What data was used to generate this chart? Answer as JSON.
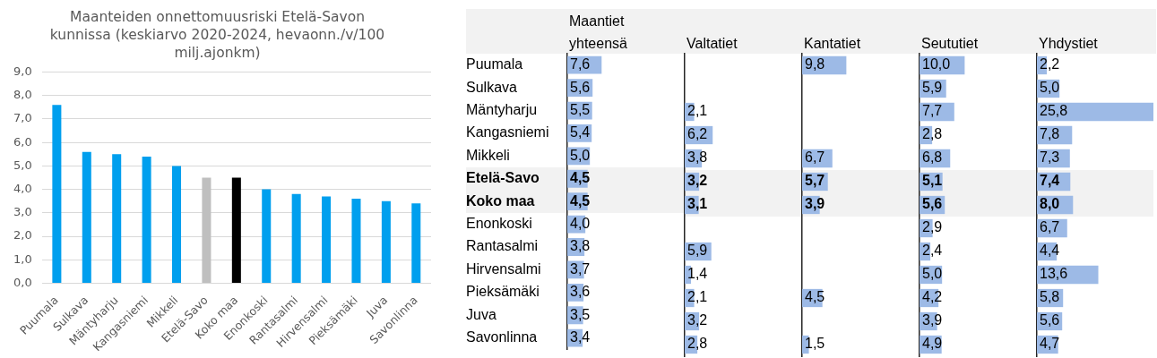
{
  "chart_data": [
    {
      "type": "bar",
      "title": "Maanteiden onnettomuusriski Etelä-Savon kunnissa (keskiarvo 2020-2024, hevaonn./v/100 milj.ajonkm)",
      "categories": [
        "Puumala",
        "Sulkava",
        "Mäntyharju",
        "Kangasniemi",
        "Mikkeli",
        "Etelä-Savo",
        "Koko maa",
        "Enonkoski",
        "Rantasalmi",
        "Hirvensalmi",
        "Pieksämäki",
        "Juva",
        "Savonlinna"
      ],
      "values": [
        7.6,
        5.6,
        5.5,
        5.4,
        5.0,
        4.5,
        4.5,
        4.0,
        3.8,
        3.7,
        3.6,
        3.5,
        3.4
      ],
      "colors": [
        "#009fee",
        "#009fee",
        "#009fee",
        "#009fee",
        "#009fee",
        "#bfbfbf",
        "#000000",
        "#009fee",
        "#009fee",
        "#009fee",
        "#009fee",
        "#009fee",
        "#009fee"
      ],
      "ylim": [
        0,
        9
      ],
      "yticks": [
        {
          "value": 0,
          "label": "0,0"
        },
        {
          "value": 1,
          "label": "1,0"
        },
        {
          "value": 2,
          "label": "2,0"
        },
        {
          "value": 3,
          "label": "3,0"
        },
        {
          "value": 4,
          "label": "4,0"
        },
        {
          "value": 5,
          "label": "5,0"
        },
        {
          "value": 6,
          "label": "6,0"
        },
        {
          "value": 7,
          "label": "7,0"
        },
        {
          "value": 8,
          "label": "8,0"
        },
        {
          "value": 9,
          "label": "9,0"
        }
      ],
      "grid": "y"
    },
    {
      "type": "bar",
      "orientation": "horizontal",
      "title": "Maantiet yhteensä",
      "categories": [
        "Puumala",
        "Sulkava",
        "Mäntyharju",
        "Kangasniemi",
        "Mikkeli",
        "Etelä-Savo",
        "Koko maa",
        "Enonkoski",
        "Rantasalmi",
        "Hirvensalmi",
        "Pieksämäki",
        "Juva",
        "Savonlinna"
      ],
      "values": [
        7.6,
        5.6,
        5.5,
        5.4,
        5.0,
        4.5,
        4.5,
        4.0,
        3.8,
        3.7,
        3.6,
        3.5,
        3.4
      ],
      "value_labels": [
        "7,6",
        "5,6",
        "5,5",
        "5,4",
        "5,0",
        "4,5",
        "4,5",
        "4,0",
        "3,8",
        "3,7",
        "3,6",
        "3,5",
        "3,4"
      ],
      "color": "#9dbae6",
      "tick_labels": "y",
      "bands": [
        {
          "axis": "y",
          "from": "Etelä-Savo",
          "to": "Koko maa",
          "color": "#f2f2f2"
        }
      ]
    },
    {
      "type": "bar",
      "orientation": "horizontal",
      "title": "Valtatiet",
      "categories": [
        "Puumala",
        "Sulkava",
        "Mäntyharju",
        "Kangasniemi",
        "Mikkeli",
        "Etelä-Savo",
        "Koko maa",
        "Enonkoski",
        "Rantasalmi",
        "Hirvensalmi",
        "Pieksämäki",
        "Juva",
        "Savonlinna"
      ],
      "values": [
        null,
        null,
        2.1,
        6.2,
        3.8,
        3.2,
        3.1,
        null,
        5.9,
        1.4,
        2.1,
        3.2,
        2.8
      ],
      "value_labels": [
        null,
        null,
        "2,1",
        "6,2",
        "3,8",
        "3,2",
        "3,1",
        null,
        "5,9",
        "1,4",
        "2,1",
        "3,2",
        "2,8"
      ],
      "color": "#9dbae6",
      "tick_labels": false,
      "bands": [
        {
          "axis": "y",
          "from": "Etelä-Savo",
          "to": "Koko maa",
          "color": "#f2f2f2"
        }
      ]
    },
    {
      "type": "bar",
      "orientation": "horizontal",
      "title": "Kantatiet",
      "categories": [
        "Puumala",
        "Sulkava",
        "Mäntyharju",
        "Kangasniemi",
        "Mikkeli",
        "Etelä-Savo",
        "Koko maa",
        "Enonkoski",
        "Rantasalmi",
        "Hirvensalmi",
        "Pieksämäki",
        "Juva",
        "Savonlinna"
      ],
      "values": [
        9.8,
        null,
        null,
        null,
        6.7,
        5.7,
        3.9,
        null,
        null,
        null,
        4.5,
        null,
        1.5
      ],
      "value_labels": [
        "9,8",
        null,
        null,
        null,
        "6,7",
        "5,7",
        "3,9",
        null,
        null,
        null,
        "4,5",
        null,
        "1,5"
      ],
      "color": "#9dbae6",
      "tick_labels": false,
      "bands": [
        {
          "axis": "y",
          "from": "Etelä-Savo",
          "to": "Koko maa",
          "color": "#f2f2f2"
        }
      ]
    },
    {
      "type": "bar",
      "orientation": "horizontal",
      "title": "Seututiet",
      "categories": [
        "Puumala",
        "Sulkava",
        "Mäntyharju",
        "Kangasniemi",
        "Mikkeli",
        "Etelä-Savo",
        "Koko maa",
        "Enonkoski",
        "Rantasalmi",
        "Hirvensalmi",
        "Pieksämäki",
        "Juva",
        "Savonlinna"
      ],
      "values": [
        10.0,
        5.9,
        7.7,
        2.8,
        6.8,
        5.1,
        5.6,
        2.9,
        2.4,
        5.0,
        4.2,
        3.9,
        4.9
      ],
      "value_labels": [
        "10,0",
        "5,9",
        "7,7",
        "2,8",
        "6,8",
        "5,1",
        "5,6",
        "2,9",
        "2,4",
        "5,0",
        "4,2",
        "3,9",
        "4,9"
      ],
      "color": "#9dbae6",
      "tick_labels": false,
      "bands": [
        {
          "axis": "y",
          "from": "Etelä-Savo",
          "to": "Koko maa",
          "color": "#f2f2f2"
        }
      ]
    },
    {
      "type": "bar",
      "orientation": "horizontal",
      "title": "Yhdystiet",
      "categories": [
        "Puumala",
        "Sulkava",
        "Mäntyharju",
        "Kangasniemi",
        "Mikkeli",
        "Etelä-Savo",
        "Koko maa",
        "Enonkoski",
        "Rantasalmi",
        "Hirvensalmi",
        "Pieksämäki",
        "Juva",
        "Savonlinna"
      ],
      "values": [
        2.2,
        5.0,
        25.8,
        7.8,
        7.3,
        7.4,
        8.0,
        6.7,
        4.4,
        13.6,
        5.8,
        5.6,
        4.7
      ],
      "value_labels": [
        "2,2",
        "5,0",
        "25,8",
        "7,8",
        "7,3",
        "7,4",
        "8,0",
        "6,7",
        "4,4",
        "13,6",
        "5,8",
        "5,6",
        "4,7"
      ],
      "color": "#9dbae6",
      "tick_labels": false,
      "bands": [
        {
          "axis": "y",
          "from": "Etelä-Savo",
          "to": "Koko maa",
          "color": "#f2f2f2"
        }
      ]
    }
  ]
}
